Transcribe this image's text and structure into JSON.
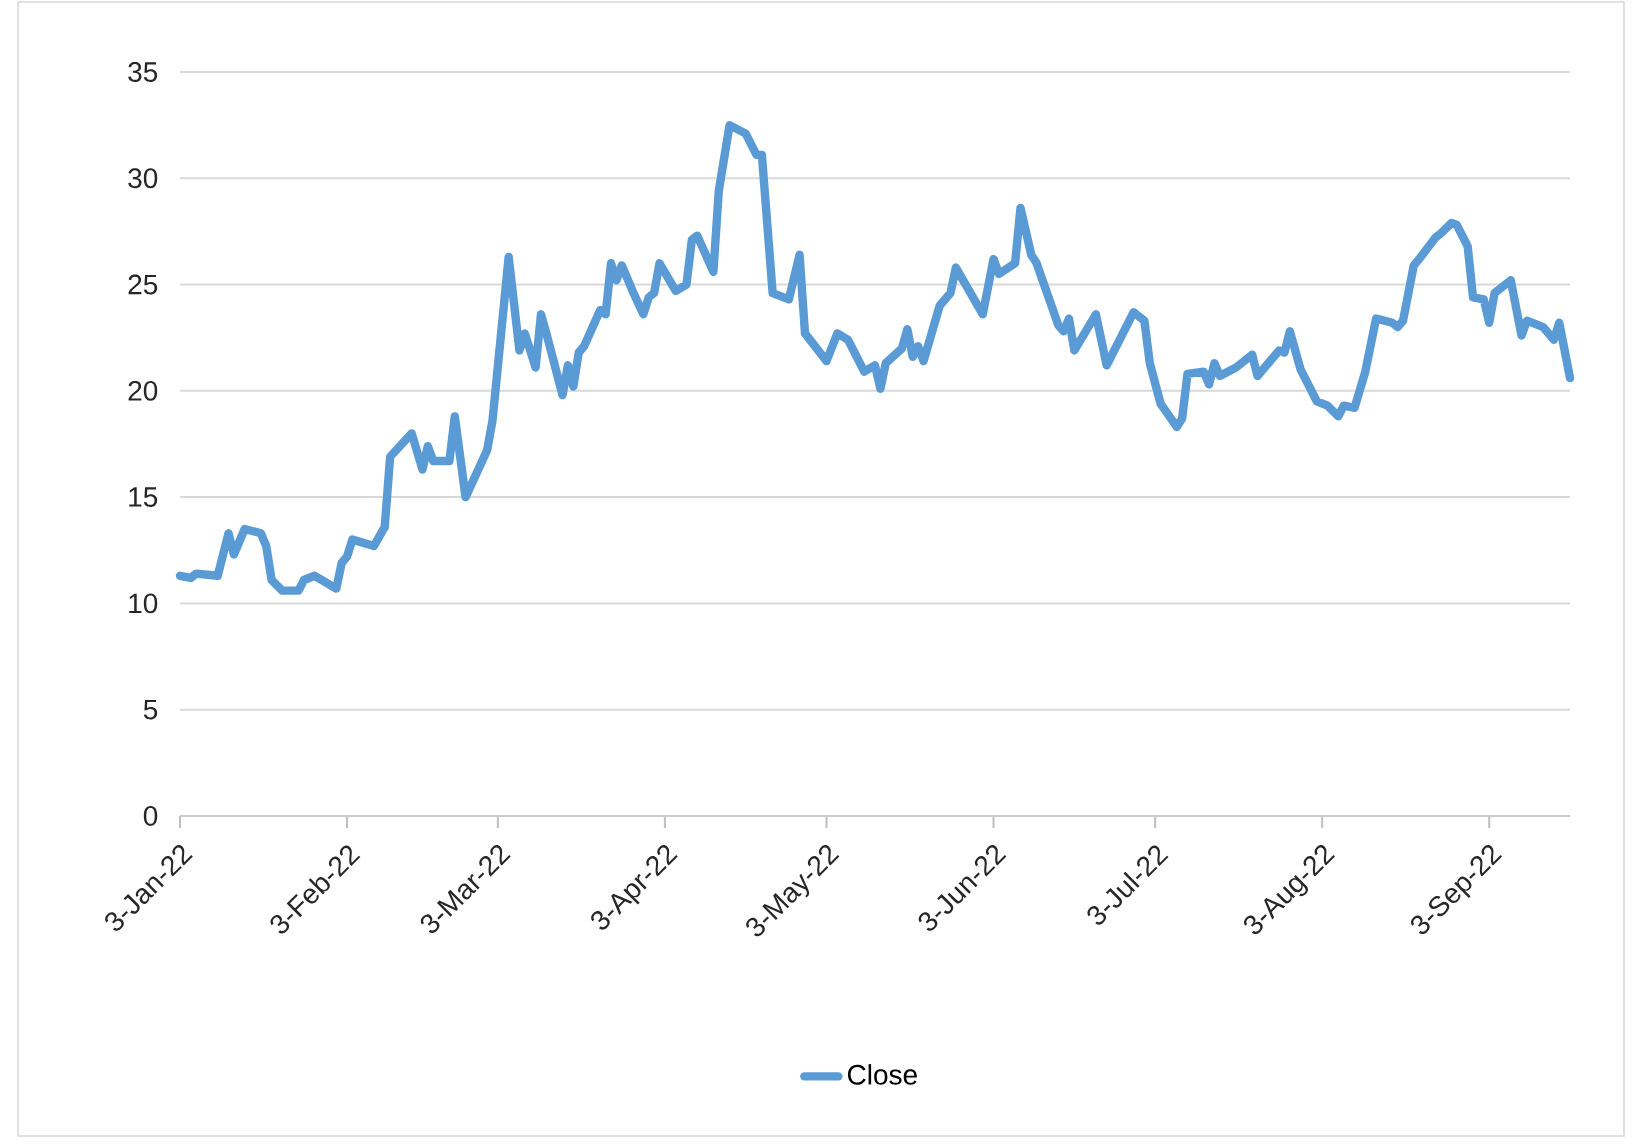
{
  "chart_data": {
    "type": "line",
    "x": [
      "2022-01-03",
      "2022-01-05",
      "2022-01-06",
      "2022-01-10",
      "2022-01-12",
      "2022-01-13",
      "2022-01-15",
      "2022-01-18",
      "2022-01-19",
      "2022-01-20",
      "2022-01-22",
      "2022-01-25",
      "2022-01-26",
      "2022-01-28",
      "2022-02-01",
      "2022-02-02",
      "2022-02-03",
      "2022-02-04",
      "2022-02-08",
      "2022-02-10",
      "2022-02-11",
      "2022-02-15",
      "2022-02-17",
      "2022-02-18",
      "2022-02-19",
      "2022-02-22",
      "2022-02-23",
      "2022-02-25",
      "2022-02-27",
      "2022-03-01",
      "2022-03-02",
      "2022-03-05",
      "2022-03-07",
      "2022-03-08",
      "2022-03-10",
      "2022-03-11",
      "2022-03-12",
      "2022-03-15",
      "2022-03-16",
      "2022-03-17",
      "2022-03-18",
      "2022-03-19",
      "2022-03-22",
      "2022-03-23",
      "2022-03-24",
      "2022-03-25",
      "2022-03-26",
      "2022-03-28",
      "2022-03-30",
      "2022-03-31",
      "2022-04-01",
      "2022-04-02",
      "2022-04-05",
      "2022-04-07",
      "2022-04-08",
      "2022-04-09",
      "2022-04-12",
      "2022-04-13",
      "2022-04-15",
      "2022-04-18",
      "2022-04-20",
      "2022-04-21",
      "2022-04-23",
      "2022-04-26",
      "2022-04-28",
      "2022-04-29",
      "2022-05-03",
      "2022-05-05",
      "2022-05-07",
      "2022-05-10",
      "2022-05-12",
      "2022-05-13",
      "2022-05-14",
      "2022-05-17",
      "2022-05-18",
      "2022-05-19",
      "2022-05-20",
      "2022-05-21",
      "2022-05-24",
      "2022-05-26",
      "2022-05-27",
      "2022-06-01",
      "2022-06-03",
      "2022-06-04",
      "2022-06-07",
      "2022-06-08",
      "2022-06-10",
      "2022-06-11",
      "2022-06-15",
      "2022-06-16",
      "2022-06-17",
      "2022-06-18",
      "2022-06-22",
      "2022-06-24",
      "2022-06-29",
      "2022-07-01",
      "2022-07-02",
      "2022-07-04",
      "2022-07-07",
      "2022-07-08",
      "2022-07-09",
      "2022-07-12",
      "2022-07-13",
      "2022-07-14",
      "2022-07-15",
      "2022-07-18",
      "2022-07-21",
      "2022-07-22",
      "2022-07-26",
      "2022-07-27",
      "2022-07-28",
      "2022-07-30",
      "2022-08-02",
      "2022-08-04",
      "2022-08-06",
      "2022-08-07",
      "2022-08-09",
      "2022-08-11",
      "2022-08-13",
      "2022-08-16",
      "2022-08-17",
      "2022-08-18",
      "2022-08-20",
      "2022-08-21",
      "2022-08-24",
      "2022-08-25",
      "2022-08-27",
      "2022-08-28",
      "2022-08-30",
      "2022-08-31",
      "2022-09-02",
      "2022-09-03",
      "2022-09-04",
      "2022-09-07",
      "2022-09-09",
      "2022-09-10",
      "2022-09-13",
      "2022-09-15",
      "2022-09-16",
      "2022-09-18"
    ],
    "series": [
      {
        "name": "Close",
        "color": "#5b9bd5",
        "values": [
          11.3,
          11.2,
          11.4,
          11.3,
          13.3,
          12.3,
          13.5,
          13.3,
          12.7,
          11.1,
          10.6,
          10.6,
          11.1,
          11.3,
          10.7,
          11.9,
          12.2,
          13.0,
          12.7,
          13.6,
          16.9,
          18.0,
          16.3,
          17.4,
          16.7,
          16.7,
          18.8,
          15.0,
          16.1,
          17.2,
          18.6,
          26.3,
          21.9,
          22.7,
          21.1,
          23.6,
          22.7,
          19.8,
          21.2,
          20.2,
          21.8,
          22.1,
          23.8,
          23.6,
          26.0,
          25.2,
          25.9,
          24.7,
          23.6,
          24.4,
          24.6,
          26.0,
          24.7,
          25.0,
          27.1,
          27.3,
          25.6,
          29.4,
          32.5,
          32.1,
          31.1,
          31.1,
          24.6,
          24.3,
          26.4,
          22.7,
          21.4,
          22.7,
          22.4,
          20.9,
          21.2,
          20.1,
          21.3,
          22.0,
          22.9,
          21.6,
          22.1,
          21.4,
          24.0,
          24.6,
          25.8,
          23.6,
          26.2,
          25.5,
          26.0,
          28.6,
          26.4,
          26.0,
          23.1,
          22.8,
          23.4,
          21.9,
          23.6,
          21.2,
          23.7,
          23.3,
          21.3,
          19.4,
          18.3,
          18.7,
          20.8,
          20.9,
          20.3,
          21.3,
          20.7,
          21.1,
          21.7,
          20.7,
          21.9,
          21.8,
          22.8,
          21.0,
          19.5,
          19.3,
          18.8,
          19.3,
          19.2,
          20.9,
          23.4,
          23.2,
          23.0,
          23.3,
          25.9,
          26.2,
          27.2,
          27.4,
          27.9,
          27.8,
          26.8,
          24.4,
          24.3,
          23.2,
          24.6,
          25.2,
          22.6,
          23.3,
          23.0,
          22.4,
          23.2,
          20.6
        ]
      }
    ],
    "xlim": [
      "2022-01-03",
      "2022-09-18"
    ],
    "xticks": [
      {
        "value": "2022-01-03",
        "label": "3-Jan-22"
      },
      {
        "value": "2022-02-03",
        "label": "3-Feb-22"
      },
      {
        "value": "2022-03-03",
        "label": "3-Mar-22"
      },
      {
        "value": "2022-04-03",
        "label": "3-Apr-22"
      },
      {
        "value": "2022-05-03",
        "label": "3-May-22"
      },
      {
        "value": "2022-06-03",
        "label": "3-Jun-22"
      },
      {
        "value": "2022-07-03",
        "label": "3-Jul-22"
      },
      {
        "value": "2022-08-03",
        "label": "3-Aug-22"
      },
      {
        "value": "2022-09-03",
        "label": "3-Sep-22"
      }
    ],
    "ylim": [
      0,
      35
    ],
    "yticks": [
      0,
      5,
      10,
      15,
      20,
      25,
      30,
      35
    ],
    "grid": "y",
    "legend": "bottom"
  }
}
